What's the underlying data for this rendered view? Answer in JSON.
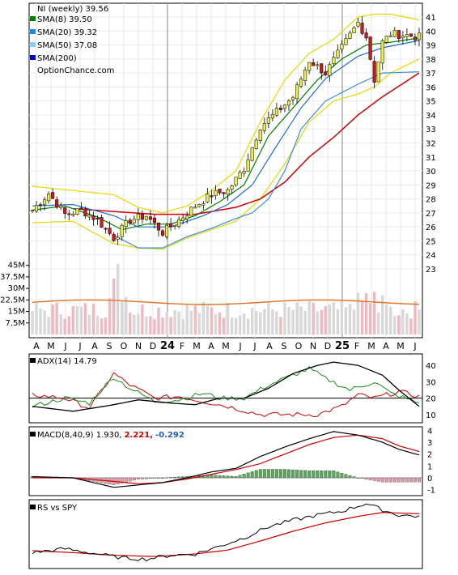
{
  "chart_data": [
    {
      "type": "candlestick",
      "panel": "price",
      "ticker_label": "NI (weekly) 39.56",
      "watermark": "OptionChance.com",
      "legend": [
        {
          "label": "SMA(8) 39.50",
          "color": "#008000"
        },
        {
          "label": "SMA(20) 39.32",
          "color": "#1e88e5"
        },
        {
          "label": "SMA(50) 37.08",
          "color": "#87cefa"
        },
        {
          "label": "SMA(200)",
          "color": "#0000cc"
        }
      ],
      "y_ticks": [
        "41",
        "40",
        "39",
        "38",
        "37",
        "36",
        "35",
        "34",
        "33",
        "32",
        "31",
        "30",
        "29",
        "28",
        "27",
        "26",
        "25",
        "24",
        "23"
      ],
      "ylim": [
        23,
        41
      ],
      "x_ticks": [
        "A",
        "M",
        "J",
        "J",
        "A",
        "S",
        "O",
        "N",
        "D",
        "24",
        "F",
        "M",
        "A",
        "M",
        "J",
        "J",
        "A",
        "S",
        "O",
        "N",
        "D",
        "25",
        "F",
        "M",
        "A",
        "M",
        "J"
      ],
      "close_anchors": [
        [
          0,
          27.2
        ],
        [
          4,
          28.4
        ],
        [
          8,
          26.9
        ],
        [
          12,
          27.2
        ],
        [
          16,
          26.5
        ],
        [
          20,
          25.2
        ],
        [
          24,
          26.5
        ],
        [
          28,
          26.8
        ],
        [
          32,
          25.6
        ],
        [
          36,
          26.5
        ],
        [
          40,
          27.5
        ],
        [
          44,
          28.3
        ],
        [
          48,
          28.6
        ],
        [
          52,
          30.2
        ],
        [
          56,
          33.2
        ],
        [
          60,
          34.2
        ],
        [
          64,
          35.3
        ],
        [
          68,
          37.9
        ],
        [
          72,
          37.0
        ],
        [
          76,
          38.8
        ],
        [
          80,
          40.6
        ],
        [
          82,
          39.6
        ],
        [
          84,
          36.5
        ],
        [
          86,
          39.2
        ],
        [
          88,
          39.8
        ],
        [
          92,
          39.7
        ],
        [
          95,
          39.56
        ]
      ],
      "bollinger_upper_anchors": [
        [
          0,
          28.9
        ],
        [
          10,
          28.6
        ],
        [
          20,
          28.3
        ],
        [
          26,
          27.4
        ],
        [
          32,
          27.0
        ],
        [
          38,
          27.5
        ],
        [
          44,
          28.6
        ],
        [
          50,
          30.0
        ],
        [
          56,
          33.5
        ],
        [
          62,
          36.5
        ],
        [
          68,
          38.4
        ],
        [
          74,
          39.4
        ],
        [
          80,
          41.0
        ],
        [
          84,
          41.2
        ],
        [
          88,
          41.2
        ],
        [
          95,
          40.8
        ]
      ],
      "bollinger_lower_anchors": [
        [
          0,
          26.3
        ],
        [
          10,
          26.4
        ],
        [
          20,
          24.8
        ],
        [
          26,
          24.5
        ],
        [
          32,
          24.4
        ],
        [
          38,
          25.2
        ],
        [
          44,
          25.8
        ],
        [
          50,
          26.4
        ],
        [
          56,
          28.0
        ],
        [
          62,
          30.5
        ],
        [
          68,
          33.5
        ],
        [
          74,
          35.0
        ],
        [
          80,
          35.5
        ],
        [
          84,
          36.0
        ],
        [
          88,
          37.0
        ],
        [
          95,
          38.0
        ]
      ],
      "sma8_anchors": [
        [
          0,
          27.2
        ],
        [
          8,
          27.5
        ],
        [
          16,
          26.7
        ],
        [
          22,
          25.8
        ],
        [
          28,
          26.2
        ],
        [
          34,
          26.2
        ],
        [
          40,
          26.8
        ],
        [
          46,
          27.8
        ],
        [
          52,
          29.0
        ],
        [
          58,
          32.5
        ],
        [
          64,
          34.5
        ],
        [
          70,
          36.5
        ],
        [
          76,
          38.0
        ],
        [
          82,
          39.0
        ],
        [
          88,
          39.2
        ],
        [
          95,
          39.5
        ]
      ],
      "sma20_anchors": [
        [
          0,
          27.5
        ],
        [
          10,
          27.6
        ],
        [
          20,
          26.8
        ],
        [
          26,
          26.0
        ],
        [
          34,
          26.0
        ],
        [
          42,
          26.8
        ],
        [
          48,
          27.6
        ],
        [
          54,
          29.0
        ],
        [
          60,
          31.8
        ],
        [
          66,
          34.5
        ],
        [
          72,
          36.6
        ],
        [
          80,
          38.2
        ],
        [
          86,
          38.8
        ],
        [
          95,
          39.32
        ]
      ],
      "sma50_anchors": [
        [
          20,
          25.4
        ],
        [
          26,
          24.5
        ],
        [
          32,
          24.5
        ],
        [
          38,
          25.3
        ],
        [
          44,
          25.9
        ],
        [
          50,
          26.6
        ],
        [
          54,
          27.0
        ],
        [
          58,
          28.0
        ],
        [
          62,
          30.0
        ],
        [
          66,
          33.0
        ],
        [
          72,
          35.0
        ],
        [
          80,
          36.2
        ],
        [
          86,
          37.0
        ],
        [
          95,
          37.08
        ]
      ],
      "sma200_anchors": [
        [
          10,
          27.3
        ],
        [
          20,
          27.1
        ],
        [
          30,
          26.9
        ],
        [
          40,
          26.9
        ],
        [
          50,
          27.4
        ],
        [
          56,
          28.0
        ],
        [
          62,
          29.2
        ],
        [
          68,
          31.0
        ],
        [
          74,
          32.4
        ],
        [
          80,
          34.0
        ],
        [
          86,
          35.3
        ],
        [
          95,
          37.0
        ]
      ],
      "volume_ticks": [
        "45M",
        "37.5M",
        "30M",
        "22.5M",
        "15M",
        "7.5M"
      ],
      "volume_ylim": [
        0,
        48
      ]
    },
    {
      "type": "line",
      "panel": "adx",
      "title": "ADX(14) 14.79",
      "y_ticks": [
        "40",
        "30",
        "20",
        "10"
      ],
      "ylim": [
        5,
        47
      ],
      "adx_anchors": [
        [
          0,
          15
        ],
        [
          10,
          12
        ],
        [
          20,
          16
        ],
        [
          26,
          19
        ],
        [
          34,
          17
        ],
        [
          40,
          16
        ],
        [
          46,
          20
        ],
        [
          52,
          20
        ],
        [
          58,
          26
        ],
        [
          64,
          35
        ],
        [
          70,
          40
        ],
        [
          74,
          42
        ],
        [
          80,
          40
        ],
        [
          86,
          34
        ],
        [
          90,
          25
        ],
        [
          95,
          15
        ]
      ],
      "plus_di_anchors": [
        [
          0,
          15
        ],
        [
          8,
          20
        ],
        [
          14,
          17
        ],
        [
          20,
          33
        ],
        [
          24,
          26
        ],
        [
          30,
          18
        ],
        [
          36,
          19
        ],
        [
          42,
          23
        ],
        [
          46,
          20
        ],
        [
          52,
          20
        ],
        [
          58,
          28
        ],
        [
          64,
          34
        ],
        [
          68,
          38
        ],
        [
          72,
          32
        ],
        [
          78,
          25
        ],
        [
          84,
          30
        ],
        [
          88,
          23
        ],
        [
          95,
          17
        ]
      ],
      "minus_di_anchors": [
        [
          0,
          22
        ],
        [
          8,
          20
        ],
        [
          14,
          14
        ],
        [
          20,
          35
        ],
        [
          24,
          28
        ],
        [
          30,
          20
        ],
        [
          36,
          21
        ],
        [
          42,
          18
        ],
        [
          48,
          15
        ],
        [
          56,
          10
        ],
        [
          64,
          10
        ],
        [
          70,
          10
        ],
        [
          76,
          15
        ],
        [
          80,
          22
        ],
        [
          84,
          20
        ],
        [
          90,
          24
        ],
        [
          95,
          21
        ]
      ]
    },
    {
      "type": "line",
      "panel": "macd",
      "title_prefix": "MACD(8,40,9) 1.930,",
      "title_signal": "2.221,",
      "title_hist": "-0.292",
      "y_ticks": [
        "4",
        "3",
        "2",
        "1",
        "0",
        "-1"
      ],
      "ylim": [
        -1.5,
        4.3
      ],
      "macd_anchors": [
        [
          0,
          0.1
        ],
        [
          10,
          0.0
        ],
        [
          20,
          -0.8
        ],
        [
          26,
          -0.6
        ],
        [
          32,
          -0.4
        ],
        [
          38,
          0.0
        ],
        [
          44,
          0.5
        ],
        [
          50,
          0.8
        ],
        [
          56,
          1.8
        ],
        [
          62,
          2.6
        ],
        [
          68,
          3.3
        ],
        [
          74,
          3.9
        ],
        [
          80,
          3.6
        ],
        [
          86,
          3.0
        ],
        [
          90,
          2.4
        ],
        [
          95,
          1.93
        ]
      ],
      "signal_anchors": [
        [
          0,
          0.0
        ],
        [
          10,
          0.0
        ],
        [
          20,
          -0.3
        ],
        [
          26,
          -0.5
        ],
        [
          32,
          -0.4
        ],
        [
          38,
          -0.1
        ],
        [
          44,
          0.3
        ],
        [
          50,
          0.7
        ],
        [
          56,
          1.2
        ],
        [
          62,
          2.0
        ],
        [
          68,
          2.8
        ],
        [
          74,
          3.4
        ],
        [
          80,
          3.6
        ],
        [
          86,
          3.3
        ],
        [
          90,
          2.7
        ],
        [
          95,
          2.22
        ]
      ]
    },
    {
      "type": "line",
      "panel": "rs",
      "title": "RS vs SPY",
      "rs_anchors": [
        [
          0,
          0.22
        ],
        [
          8,
          0.28
        ],
        [
          16,
          0.2
        ],
        [
          22,
          0.14
        ],
        [
          28,
          0.12
        ],
        [
          34,
          0.18
        ],
        [
          40,
          0.2
        ],
        [
          46,
          0.32
        ],
        [
          52,
          0.45
        ],
        [
          58,
          0.62
        ],
        [
          64,
          0.72
        ],
        [
          70,
          0.8
        ],
        [
          76,
          0.86
        ],
        [
          82,
          0.98
        ],
        [
          86,
          0.88
        ],
        [
          90,
          0.8
        ],
        [
          95,
          0.78
        ]
      ],
      "rs_ma_anchors": [
        [
          0,
          0.25
        ],
        [
          10,
          0.22
        ],
        [
          20,
          0.18
        ],
        [
          30,
          0.16
        ],
        [
          40,
          0.2
        ],
        [
          48,
          0.26
        ],
        [
          56,
          0.4
        ],
        [
          64,
          0.55
        ],
        [
          72,
          0.68
        ],
        [
          80,
          0.78
        ],
        [
          86,
          0.84
        ],
        [
          95,
          0.82
        ]
      ]
    }
  ]
}
